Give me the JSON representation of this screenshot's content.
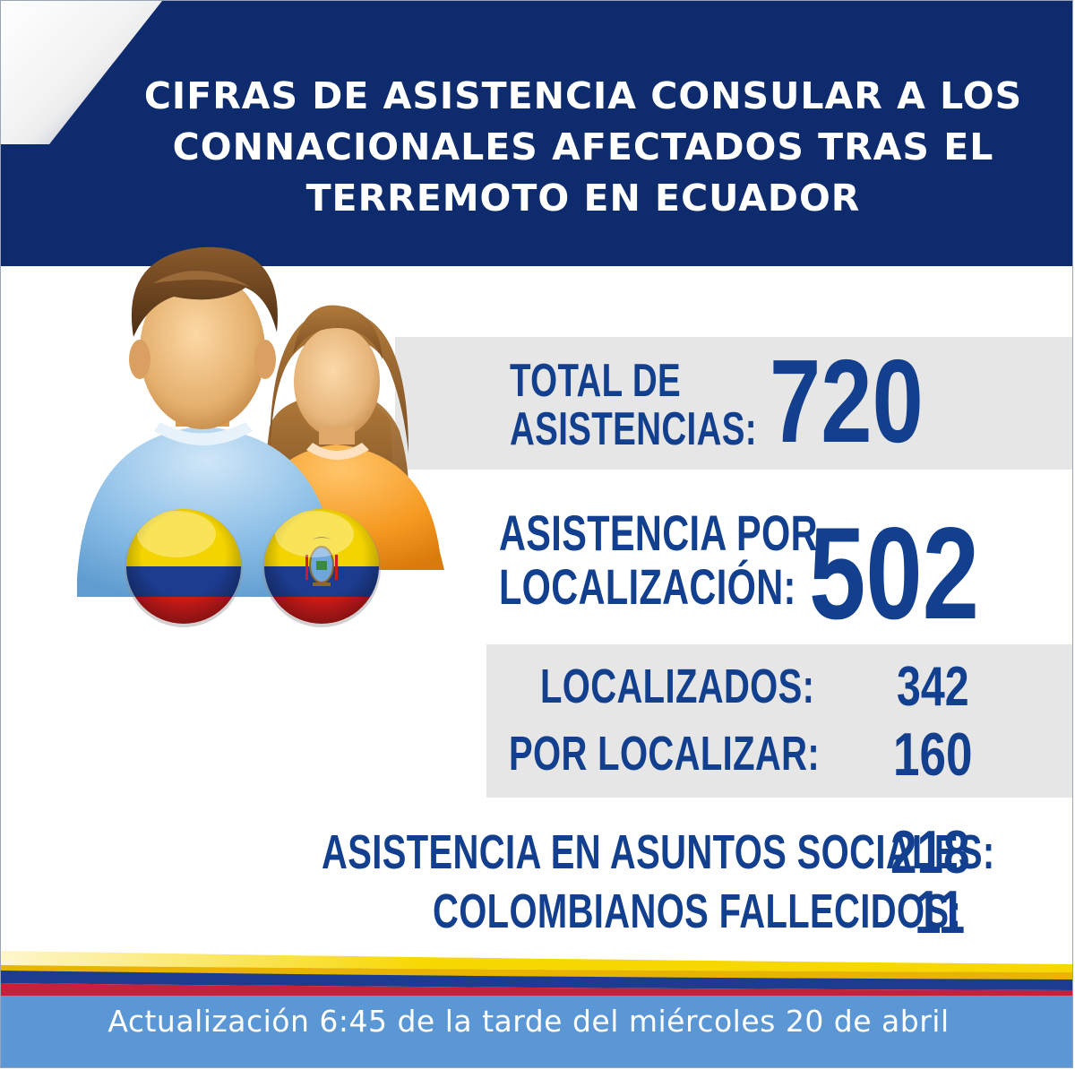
{
  "title": {
    "line1": "CIFRAS DE ASISTENCIA CONSULAR A LOS",
    "line2": "CONNACIONALES AFECTADOS TRAS EL",
    "line3": "TERREMOTO EN ECUADOR"
  },
  "stats": {
    "total_label_1": "TOTAL DE",
    "total_label_2": "ASISTENCIAS:",
    "total_value": "720",
    "localizacion_label_1": "ASISTENCIA POR",
    "localizacion_label_2": "LOCALIZACIÓN:",
    "localizacion_value": "502",
    "localizados_label": "LOCALIZADOS:",
    "localizados_value": "342",
    "por_localizar_label": "POR LOCALIZAR:",
    "por_localizar_value": "160",
    "sociales_label": "ASISTENCIA EN ASUNTOS SOCIALES:",
    "sociales_value": "218",
    "fallecidos_label": "COLOMBIANOS FALLECIDOS:",
    "fallecidos_value": "11"
  },
  "footer": {
    "update_text": "Actualización 6:45 de la tarde del miércoles 20 de abril"
  },
  "icons": {
    "people": "people-icon",
    "colombia_flag": "colombia-flag-icon",
    "ecuador_flag": "ecuador-flag-icon"
  },
  "colors": {
    "banner": "#0d2b6d",
    "text_blue": "#133f8f",
    "panel_gray": "#e6e6e6",
    "footer_blue": "#5b97d5",
    "flag_yellow": "#f7d700",
    "flag_blue": "#1c3c8f",
    "flag_red": "#d01b1b"
  }
}
